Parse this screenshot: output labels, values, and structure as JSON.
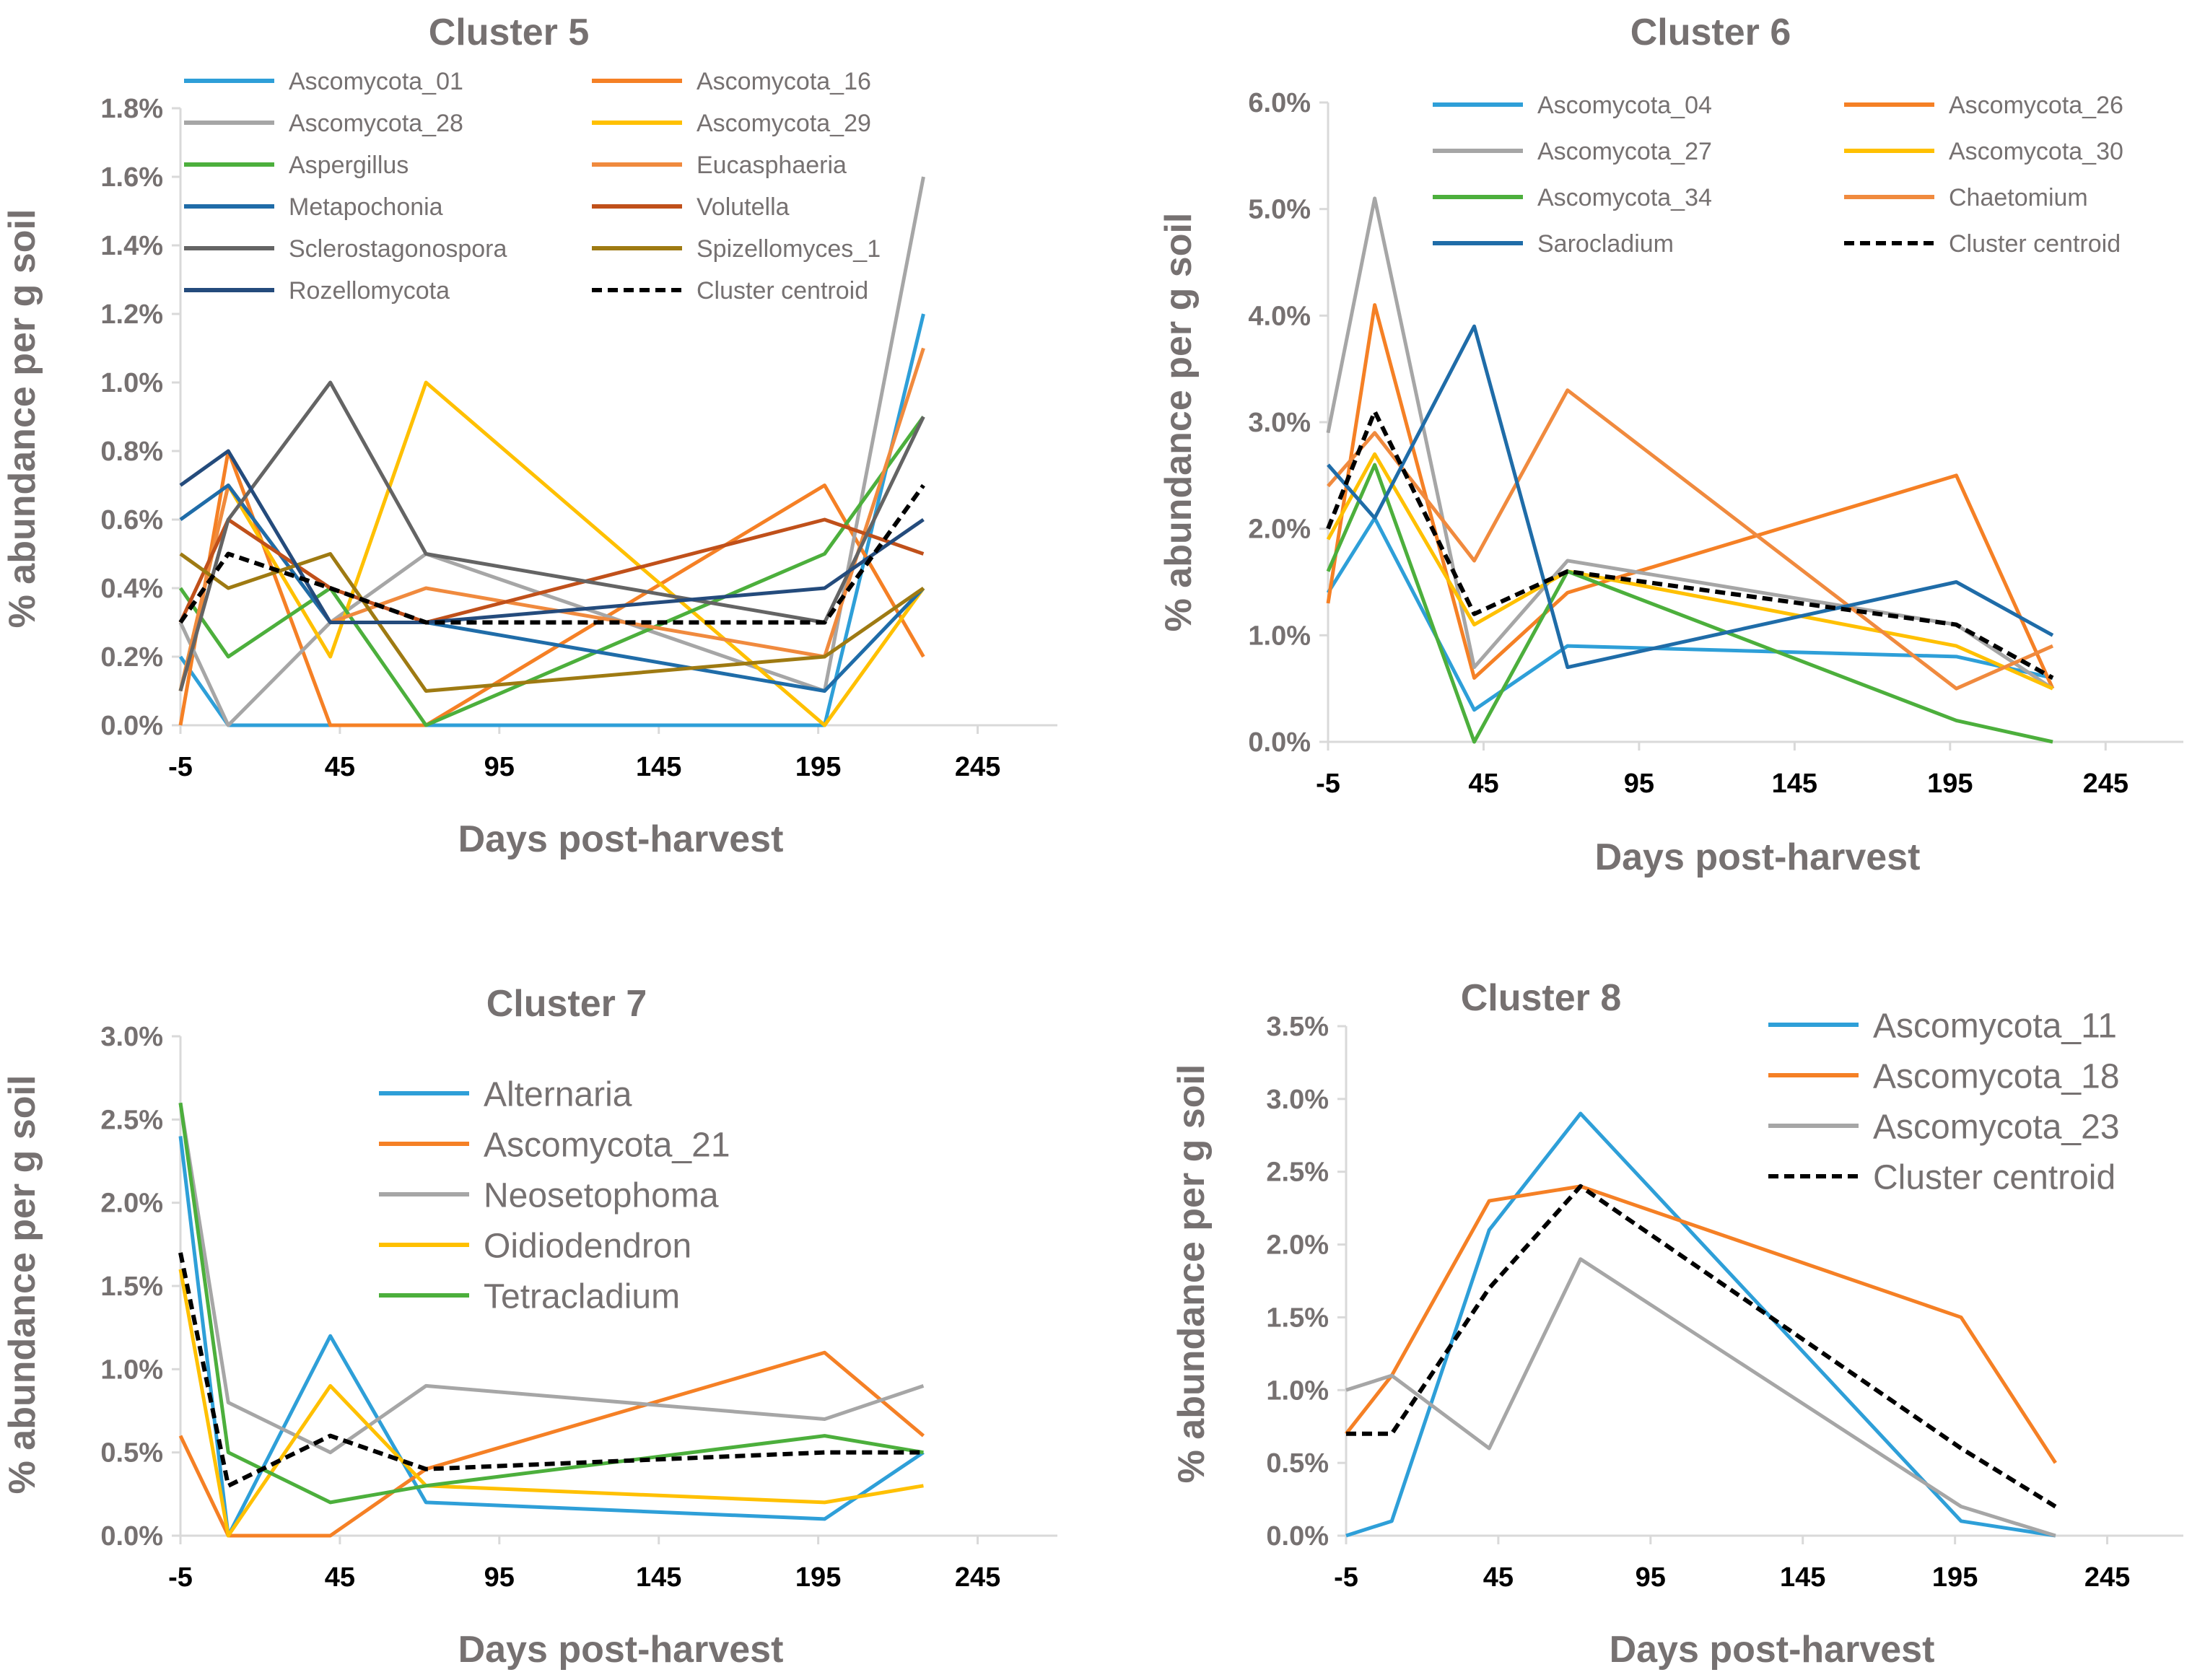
{
  "chart_data": [
    {
      "type": "line",
      "title": "Cluster 5",
      "xlabel": "Days post-harvest",
      "ylabel": "% abundance per g soil",
      "xlim": [
        -5,
        270
      ],
      "xticks": [
        "-5",
        "45",
        "95",
        "145",
        "195",
        "245"
      ],
      "xtick_values": [
        -5,
        45,
        95,
        145,
        195,
        245
      ],
      "ylim": [
        0,
        1.8
      ],
      "yticks": [
        "0.0%",
        "0.2%",
        "0.4%",
        "0.6%",
        "0.8%",
        "1.0%",
        "1.2%",
        "1.4%",
        "1.6%",
        "1.8%"
      ],
      "ytick_values": [
        0,
        0.2,
        0.4,
        0.6,
        0.8,
        1.0,
        1.2,
        1.4,
        1.6,
        1.8
      ],
      "legend_columns": 2,
      "series": [
        {
          "name": "Ascomycota_01",
          "color": "#2E9FD8",
          "x": [
            -5,
            10,
            42,
            72,
            197,
            228
          ],
          "values": [
            0.2,
            0.0,
            0.0,
            0.0,
            0.0,
            1.2
          ]
        },
        {
          "name": "Ascomycota_16",
          "color": "#F58025",
          "x": [
            -5,
            10,
            42,
            72,
            197,
            228
          ],
          "values": [
            0.0,
            0.8,
            0.0,
            0.0,
            0.7,
            0.2
          ]
        },
        {
          "name": "Ascomycota_28",
          "color": "#A6A6A6",
          "x": [
            -5,
            10,
            42,
            72,
            197,
            228
          ],
          "values": [
            0.3,
            0.0,
            0.3,
            0.5,
            0.1,
            1.6
          ]
        },
        {
          "name": "Ascomycota_29",
          "color": "#FFC000",
          "x": [
            -5,
            10,
            42,
            72,
            197,
            228
          ],
          "values": [
            0.1,
            0.7,
            0.2,
            1.0,
            0.0,
            0.4
          ]
        },
        {
          "name": "Aspergillus",
          "color": "#4CAF3C",
          "x": [
            -5,
            10,
            42,
            72,
            197,
            228
          ],
          "values": [
            0.4,
            0.2,
            0.4,
            0.0,
            0.5,
            0.9
          ]
        },
        {
          "name": "Eucasphaeria",
          "color": "#F08A3E",
          "x": [
            -5,
            10,
            42,
            72,
            197,
            228
          ],
          "values": [
            0.1,
            0.7,
            0.3,
            0.4,
            0.2,
            1.1
          ]
        },
        {
          "name": "Metapochonia",
          "color": "#1F6CA8",
          "x": [
            -5,
            10,
            42,
            72,
            197,
            228
          ],
          "values": [
            0.6,
            0.7,
            0.3,
            0.3,
            0.1,
            0.4
          ]
        },
        {
          "name": "Volutella",
          "color": "#C0501A",
          "x": [
            -5,
            10,
            42,
            72,
            197,
            228
          ],
          "values": [
            0.3,
            0.6,
            0.4,
            0.3,
            0.6,
            0.5
          ]
        },
        {
          "name": "Sclerostagonospora",
          "color": "#646464",
          "x": [
            -5,
            10,
            42,
            72,
            197,
            228
          ],
          "values": [
            0.1,
            0.6,
            1.0,
            0.5,
            0.3,
            0.9
          ]
        },
        {
          "name": "Spizellomyces_1",
          "color": "#9E7A12",
          "x": [
            -5,
            10,
            42,
            72,
            197,
            228
          ],
          "values": [
            0.5,
            0.4,
            0.5,
            0.1,
            0.2,
            0.4
          ]
        },
        {
          "name": "Rozellomycota",
          "color": "#244B7C",
          "x": [
            -5,
            10,
            42,
            72,
            197,
            228
          ],
          "values": [
            0.7,
            0.8,
            0.3,
            0.3,
            0.4,
            0.6
          ]
        },
        {
          "name": "Cluster centroid",
          "color": "#000000",
          "dashed": true,
          "x": [
            -5,
            10,
            42,
            72,
            197,
            228
          ],
          "values": [
            0.3,
            0.5,
            0.4,
            0.3,
            0.3,
            0.7
          ]
        }
      ]
    },
    {
      "type": "line",
      "title": "Cluster 6",
      "xlabel": "Days post-harvest",
      "ylabel": "% abundance per g soil",
      "xlim": [
        -5,
        270
      ],
      "xticks": [
        "-5",
        "45",
        "95",
        "145",
        "195",
        "245"
      ],
      "xtick_values": [
        -5,
        45,
        95,
        145,
        195,
        245
      ],
      "ylim": [
        0,
        6.0
      ],
      "yticks": [
        "0.0%",
        "1.0%",
        "2.0%",
        "3.0%",
        "4.0%",
        "5.0%",
        "6.0%"
      ],
      "ytick_values": [
        0,
        1,
        2,
        3,
        4,
        5,
        6
      ],
      "legend_columns": 2,
      "series": [
        {
          "name": "Ascomycota_04",
          "color": "#2E9FD8",
          "x": [
            -5,
            10,
            42,
            72,
            197,
            228
          ],
          "values": [
            1.4,
            2.1,
            0.3,
            0.9,
            0.8,
            0.6
          ]
        },
        {
          "name": "Ascomycota_26",
          "color": "#F58025",
          "x": [
            -5,
            10,
            42,
            72,
            197,
            228
          ],
          "values": [
            1.3,
            4.1,
            0.6,
            1.4,
            2.5,
            0.5
          ]
        },
        {
          "name": "Ascomycota_27",
          "color": "#A6A6A6",
          "x": [
            -5,
            10,
            42,
            72,
            197,
            228
          ],
          "values": [
            2.9,
            5.1,
            0.7,
            1.7,
            1.1,
            0.5
          ]
        },
        {
          "name": "Ascomycota_30",
          "color": "#FFC000",
          "x": [
            -5,
            10,
            42,
            72,
            197,
            228
          ],
          "values": [
            1.9,
            2.7,
            1.1,
            1.6,
            0.9,
            0.5
          ]
        },
        {
          "name": "Ascomycota_34",
          "color": "#4CAF3C",
          "x": [
            -5,
            10,
            42,
            72,
            197,
            228
          ],
          "values": [
            1.6,
            2.6,
            0.0,
            1.6,
            0.2,
            0.0
          ]
        },
        {
          "name": "Chaetomium",
          "color": "#F08A3E",
          "x": [
            -5,
            10,
            42,
            72,
            197,
            228
          ],
          "values": [
            2.4,
            2.9,
            1.7,
            3.3,
            0.5,
            0.9
          ]
        },
        {
          "name": "Sarocladium",
          "color": "#1F6CA8",
          "x": [
            -5,
            10,
            42,
            72,
            197,
            228
          ],
          "values": [
            2.6,
            2.1,
            3.9,
            0.7,
            1.5,
            1.0
          ]
        },
        {
          "name": "Cluster centroid",
          "color": "#000000",
          "dashed": true,
          "x": [
            -5,
            10,
            42,
            72,
            197,
            228
          ],
          "values": [
            2.0,
            3.1,
            1.2,
            1.6,
            1.1,
            0.6
          ]
        }
      ]
    },
    {
      "type": "line",
      "title": "Cluster 7",
      "xlabel": "Days post-harvest",
      "ylabel": "% abundance per g soil",
      "xlim": [
        -5,
        270
      ],
      "xticks": [
        "-5",
        "45",
        "95",
        "145",
        "195",
        "245"
      ],
      "xtick_values": [
        -5,
        45,
        95,
        145,
        195,
        245
      ],
      "ylim": [
        0,
        3.0
      ],
      "yticks": [
        "0.0%",
        "0.5%",
        "1.0%",
        "1.5%",
        "2.0%",
        "2.5%",
        "3.0%"
      ],
      "ytick_values": [
        0,
        0.5,
        1.0,
        1.5,
        2.0,
        2.5,
        3.0
      ],
      "legend_columns": 1,
      "series": [
        {
          "name": "Alternaria",
          "color": "#2E9FD8",
          "x": [
            -5,
            10,
            42,
            72,
            197,
            228
          ],
          "values": [
            2.4,
            0.0,
            1.2,
            0.2,
            0.1,
            0.5
          ]
        },
        {
          "name": "Ascomycota_21",
          "color": "#F58025",
          "x": [
            -5,
            10,
            42,
            72,
            197,
            228
          ],
          "values": [
            0.6,
            0.0,
            0.0,
            0.4,
            1.1,
            0.6
          ]
        },
        {
          "name": "Neosetophoma",
          "color": "#A6A6A6",
          "x": [
            -5,
            10,
            42,
            72,
            197,
            228
          ],
          "values": [
            2.6,
            0.8,
            0.5,
            0.9,
            0.7,
            0.9
          ]
        },
        {
          "name": "Oidiodendron",
          "color": "#FFC000",
          "x": [
            -5,
            10,
            42,
            72,
            197,
            228
          ],
          "values": [
            1.6,
            0.0,
            0.9,
            0.3,
            0.2,
            0.3
          ]
        },
        {
          "name": "Tetracladium",
          "color": "#4CAF3C",
          "x": [
            -5,
            10,
            42,
            72,
            197,
            228
          ],
          "values": [
            2.6,
            0.5,
            0.2,
            0.3,
            0.6,
            0.5
          ]
        },
        {
          "name": "Cluster centroid",
          "color": "#000000",
          "dashed": true,
          "legend": false,
          "x": [
            -5,
            10,
            42,
            72,
            197,
            228
          ],
          "values": [
            1.7,
            0.3,
            0.6,
            0.4,
            0.5,
            0.5
          ]
        }
      ]
    },
    {
      "type": "line",
      "title": "Cluster 8",
      "xlabel": "Days post-harvest",
      "ylabel": "% abundance per g soil",
      "xlim": [
        -5,
        270
      ],
      "xticks": [
        "-5",
        "45",
        "95",
        "145",
        "195",
        "245"
      ],
      "xtick_values": [
        -5,
        45,
        95,
        145,
        195,
        245
      ],
      "ylim": [
        0,
        3.5
      ],
      "yticks": [
        "0.0%",
        "0.5%",
        "1.0%",
        "1.5%",
        "2.0%",
        "2.5%",
        "3.0%",
        "3.5%"
      ],
      "ytick_values": [
        0,
        0.5,
        1.0,
        1.5,
        2.0,
        2.5,
        3.0,
        3.5
      ],
      "legend_columns": 1,
      "series": [
        {
          "name": "Ascomycota_11",
          "color": "#2E9FD8",
          "x": [
            -5,
            10,
            42,
            72,
            197,
            228
          ],
          "values": [
            0.0,
            0.1,
            2.1,
            2.9,
            0.1,
            0.0
          ]
        },
        {
          "name": "Ascomycota_18",
          "color": "#F58025",
          "x": [
            -5,
            10,
            42,
            72,
            197,
            228
          ],
          "values": [
            0.7,
            1.1,
            2.3,
            2.4,
            1.5,
            0.5
          ]
        },
        {
          "name": "Ascomycota_23",
          "color": "#A6A6A6",
          "x": [
            -5,
            10,
            42,
            72,
            197,
            228
          ],
          "values": [
            1.0,
            1.1,
            0.6,
            1.9,
            0.2,
            0.0
          ]
        },
        {
          "name": "Cluster centroid",
          "color": "#000000",
          "dashed": true,
          "x": [
            -5,
            10,
            42,
            72,
            197,
            228
          ],
          "values": [
            0.7,
            0.7,
            1.7,
            2.4,
            0.6,
            0.2
          ]
        }
      ]
    }
  ]
}
